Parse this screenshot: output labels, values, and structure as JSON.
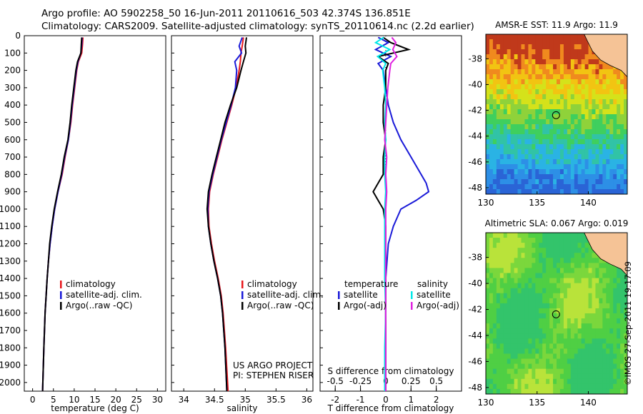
{
  "header": {
    "line1": "Argo profile: AO 5902258_50 16-Jun-2011 20110616_503 42.374S 136.851E",
    "line2": "Climatology: CARS2009. Satellite-adjusted climatology: synTS_20110614.nc (2.2d earlier)"
  },
  "credit": "US ARGO PROJECT",
  "pi": "PI: STEPHEN RISER",
  "stamp": "©IMOS 27-Sep-2011 19:17:09",
  "colors": {
    "climatology": "#e8171c",
    "satellite": "#1a1ad8",
    "argo": "#000000",
    "sal_satellite": "#00e8e8",
    "sal_argo": "#e020e0",
    "land": "#f5c396"
  },
  "chart_data": [
    {
      "id": "temperature",
      "type": "line",
      "xlabel": "temperature (deg C)",
      "xlim": [
        -2,
        32
      ],
      "xticks": [
        "0",
        "5",
        "10",
        "15",
        "20",
        "25",
        "30"
      ],
      "ylim": [
        0,
        2050
      ],
      "yticks": [
        "0",
        "100",
        "200",
        "300",
        "400",
        "500",
        "600",
        "700",
        "800",
        "900",
        "1000",
        "1100",
        "1200",
        "1300",
        "1400",
        "1500",
        "1600",
        "1700",
        "1800",
        "1900",
        "2000"
      ],
      "legend": [
        "climatology",
        "satellite-adj. clim.",
        "Argo(..raw -QC)"
      ],
      "series": [
        {
          "name": "climatology",
          "depth": [
            10,
            50,
            100,
            150,
            200,
            300,
            400,
            500,
            600,
            700,
            800,
            900,
            1000,
            1100,
            1200,
            1300,
            1400,
            1600,
            1800,
            2050
          ],
          "values": [
            12.1,
            12.0,
            11.8,
            11.0,
            10.6,
            10.1,
            9.6,
            9.2,
            8.6,
            7.8,
            7.1,
            6.1,
            5.3,
            4.7,
            4.2,
            3.8,
            3.5,
            3.0,
            2.7,
            2.4
          ]
        },
        {
          "name": "satellite-adj. clim.",
          "depth": [
            10,
            50,
            100,
            150,
            200,
            300,
            400,
            500,
            600,
            700,
            800,
            900,
            1000,
            1100,
            1200,
            1300,
            1400,
            1600,
            1800,
            2050
          ],
          "values": [
            11.9,
            11.8,
            11.6,
            10.9,
            10.5,
            10.0,
            9.5,
            9.1,
            8.6,
            7.7,
            7.0,
            6.1,
            5.3,
            4.7,
            4.2,
            3.8,
            3.5,
            3.0,
            2.7,
            2.4
          ]
        },
        {
          "name": "Argo(..raw -QC)",
          "depth": [
            10,
            50,
            100,
            150,
            200,
            300,
            400,
            500,
            600,
            700,
            800,
            900,
            1000,
            1100,
            1200,
            1300,
            1400,
            1600,
            1800,
            2050
          ],
          "values": [
            11.8,
            11.7,
            11.6,
            10.8,
            10.4,
            9.9,
            9.4,
            9.0,
            8.5,
            7.6,
            6.9,
            6.0,
            5.2,
            4.6,
            4.1,
            3.8,
            3.5,
            3.0,
            2.7,
            2.4
          ]
        }
      ]
    },
    {
      "id": "salinity",
      "type": "line",
      "xlabel": "salinity",
      "xlim": [
        33.8,
        36.1
      ],
      "xticks": [
        "34",
        "34.5",
        "35",
        "35.5",
        "36"
      ],
      "ylim": [
        0,
        2050
      ],
      "legend": [
        "climatology",
        "satellite-adj. clim.",
        "Argo(..raw -QC)"
      ],
      "series": [
        {
          "name": "climatology",
          "depth": [
            10,
            60,
            100,
            150,
            200,
            300,
            400,
            500,
            600,
            700,
            800,
            900,
            1000,
            1100,
            1200,
            1300,
            1400,
            1500,
            1600,
            1800,
            2050
          ],
          "values": [
            34.97,
            34.95,
            34.93,
            34.92,
            34.9,
            34.85,
            34.78,
            34.7,
            34.62,
            34.55,
            34.48,
            34.42,
            34.4,
            34.41,
            34.45,
            34.5,
            34.56,
            34.61,
            34.64,
            34.68,
            34.72
          ]
        },
        {
          "name": "satellite-adj. clim.",
          "depth": [
            10,
            60,
            100,
            150,
            200,
            300,
            400,
            500,
            600,
            700,
            800,
            900,
            1000,
            1100,
            1200,
            1300,
            1400,
            1500,
            1600,
            1800,
            2050
          ],
          "values": [
            34.95,
            34.9,
            34.94,
            34.83,
            34.86,
            34.84,
            34.77,
            34.69,
            34.61,
            34.54,
            34.47,
            34.41,
            34.39,
            34.4,
            34.44,
            34.49,
            34.55,
            34.6,
            34.63,
            34.67,
            34.7
          ]
        },
        {
          "name": "Argo(..raw -QC)",
          "depth": [
            10,
            60,
            100,
            150,
            200,
            300,
            400,
            500,
            600,
            700,
            800,
            900,
            1000,
            1100,
            1200,
            1300,
            1400,
            1500,
            1600,
            1800,
            2050
          ],
          "values": [
            35.02,
            35.0,
            35.01,
            34.97,
            34.93,
            34.86,
            34.76,
            34.67,
            34.6,
            34.53,
            34.46,
            34.4,
            34.38,
            34.4,
            34.44,
            34.49,
            34.55,
            34.6,
            34.63,
            34.67,
            34.7
          ]
        }
      ]
    },
    {
      "id": "difference",
      "type": "line",
      "xlabel": "T difference from climatology",
      "xlabel_top": "S difference from climatology",
      "xlim": [
        -2.6,
        3.0
      ],
      "xticks": [
        "-2",
        "-1",
        "0",
        "1",
        "2"
      ],
      "xticks_top": [
        "-0.5",
        "-0.25",
        "0",
        "0.25",
        "0.5"
      ],
      "ylim": [
        0,
        2050
      ],
      "legend_titles": [
        "temperature",
        "salinity"
      ],
      "legend": [
        "satellite",
        "Argo(-adj)",
        "satellite",
        "Argo(-adj)"
      ],
      "series": [
        {
          "name": "temperature satellite",
          "depth": [
            10,
            40,
            80,
            120,
            160,
            200,
            300,
            400,
            500,
            600,
            700,
            800,
            850,
            900,
            950,
            1000,
            1100,
            1200,
            1400,
            1600,
            1800,
            2050
          ],
          "values": [
            -0.3,
            0.1,
            -0.4,
            0.2,
            -0.3,
            -0.1,
            0.0,
            0.1,
            0.3,
            0.6,
            1.0,
            1.4,
            1.6,
            1.7,
            1.2,
            0.6,
            0.3,
            0.1,
            0.0,
            0.0,
            0.0,
            0.0
          ]
        },
        {
          "name": "temperature Argo(-adj)",
          "depth": [
            10,
            40,
            80,
            120,
            160,
            200,
            300,
            400,
            500,
            600,
            700,
            800,
            850,
            900,
            950,
            1000,
            1100,
            1200,
            1400,
            1600,
            1800,
            2050
          ],
          "values": [
            -0.1,
            0.2,
            0.9,
            -0.3,
            0.1,
            0.0,
            0.0,
            -0.1,
            -0.1,
            0.0,
            -0.1,
            -0.1,
            -0.3,
            -0.5,
            -0.3,
            -0.1,
            0.0,
            0.0,
            0.0,
            0.0,
            0.0,
            0.0
          ]
        },
        {
          "name": "salinity satellite",
          "depth": [
            10,
            40,
            80,
            120,
            160,
            200,
            300,
            400,
            500,
            600,
            700,
            800,
            900,
            1000,
            1200,
            1400,
            1600,
            1800,
            2050
          ],
          "values": [
            -0.02,
            -0.1,
            0.04,
            -0.08,
            0.0,
            -0.03,
            -0.01,
            0.0,
            -0.01,
            0.0,
            -0.01,
            -0.01,
            0.0,
            -0.01,
            -0.01,
            -0.01,
            0.0,
            -0.01,
            -0.01
          ]
        },
        {
          "name": "salinity Argo(-adj)",
          "depth": [
            10,
            40,
            80,
            120,
            160,
            200,
            300,
            400,
            500,
            600,
            700,
            800,
            900,
            1000,
            1200,
            1400,
            1600,
            1800,
            2050
          ],
          "values": [
            0.06,
            0.1,
            0.07,
            0.11,
            0.05,
            0.04,
            0.02,
            0.01,
            0.0,
            -0.01,
            0.01,
            0.0,
            0.01,
            0.0,
            0.0,
            0.0,
            0.0,
            0.0,
            0.0
          ]
        }
      ]
    },
    {
      "id": "sst_map",
      "type": "heatmap",
      "title": "AMSR-E SST: 11.9 Argo: 11.9",
      "xticks": [
        "130",
        "135",
        "140"
      ],
      "yticks": [
        "-38",
        "-40",
        "-42",
        "-44",
        "-46",
        "-48"
      ],
      "xlim": [
        130,
        143.8
      ],
      "ylim": [
        -48.5,
        -36.1
      ],
      "marker": {
        "lon": 136.851,
        "lat": -42.374
      }
    },
    {
      "id": "sla_map",
      "type": "heatmap",
      "title": "Altimetric SLA: 0.067 Argo: 0.019",
      "xticks": [
        "130",
        "135",
        "140"
      ],
      "yticks": [
        "-38",
        "-40",
        "-42",
        "-44",
        "-46",
        "-48"
      ],
      "xlim": [
        130,
        143.8
      ],
      "ylim": [
        -48.5,
        -36.1
      ],
      "marker": {
        "lon": 136.851,
        "lat": -42.374
      }
    }
  ]
}
